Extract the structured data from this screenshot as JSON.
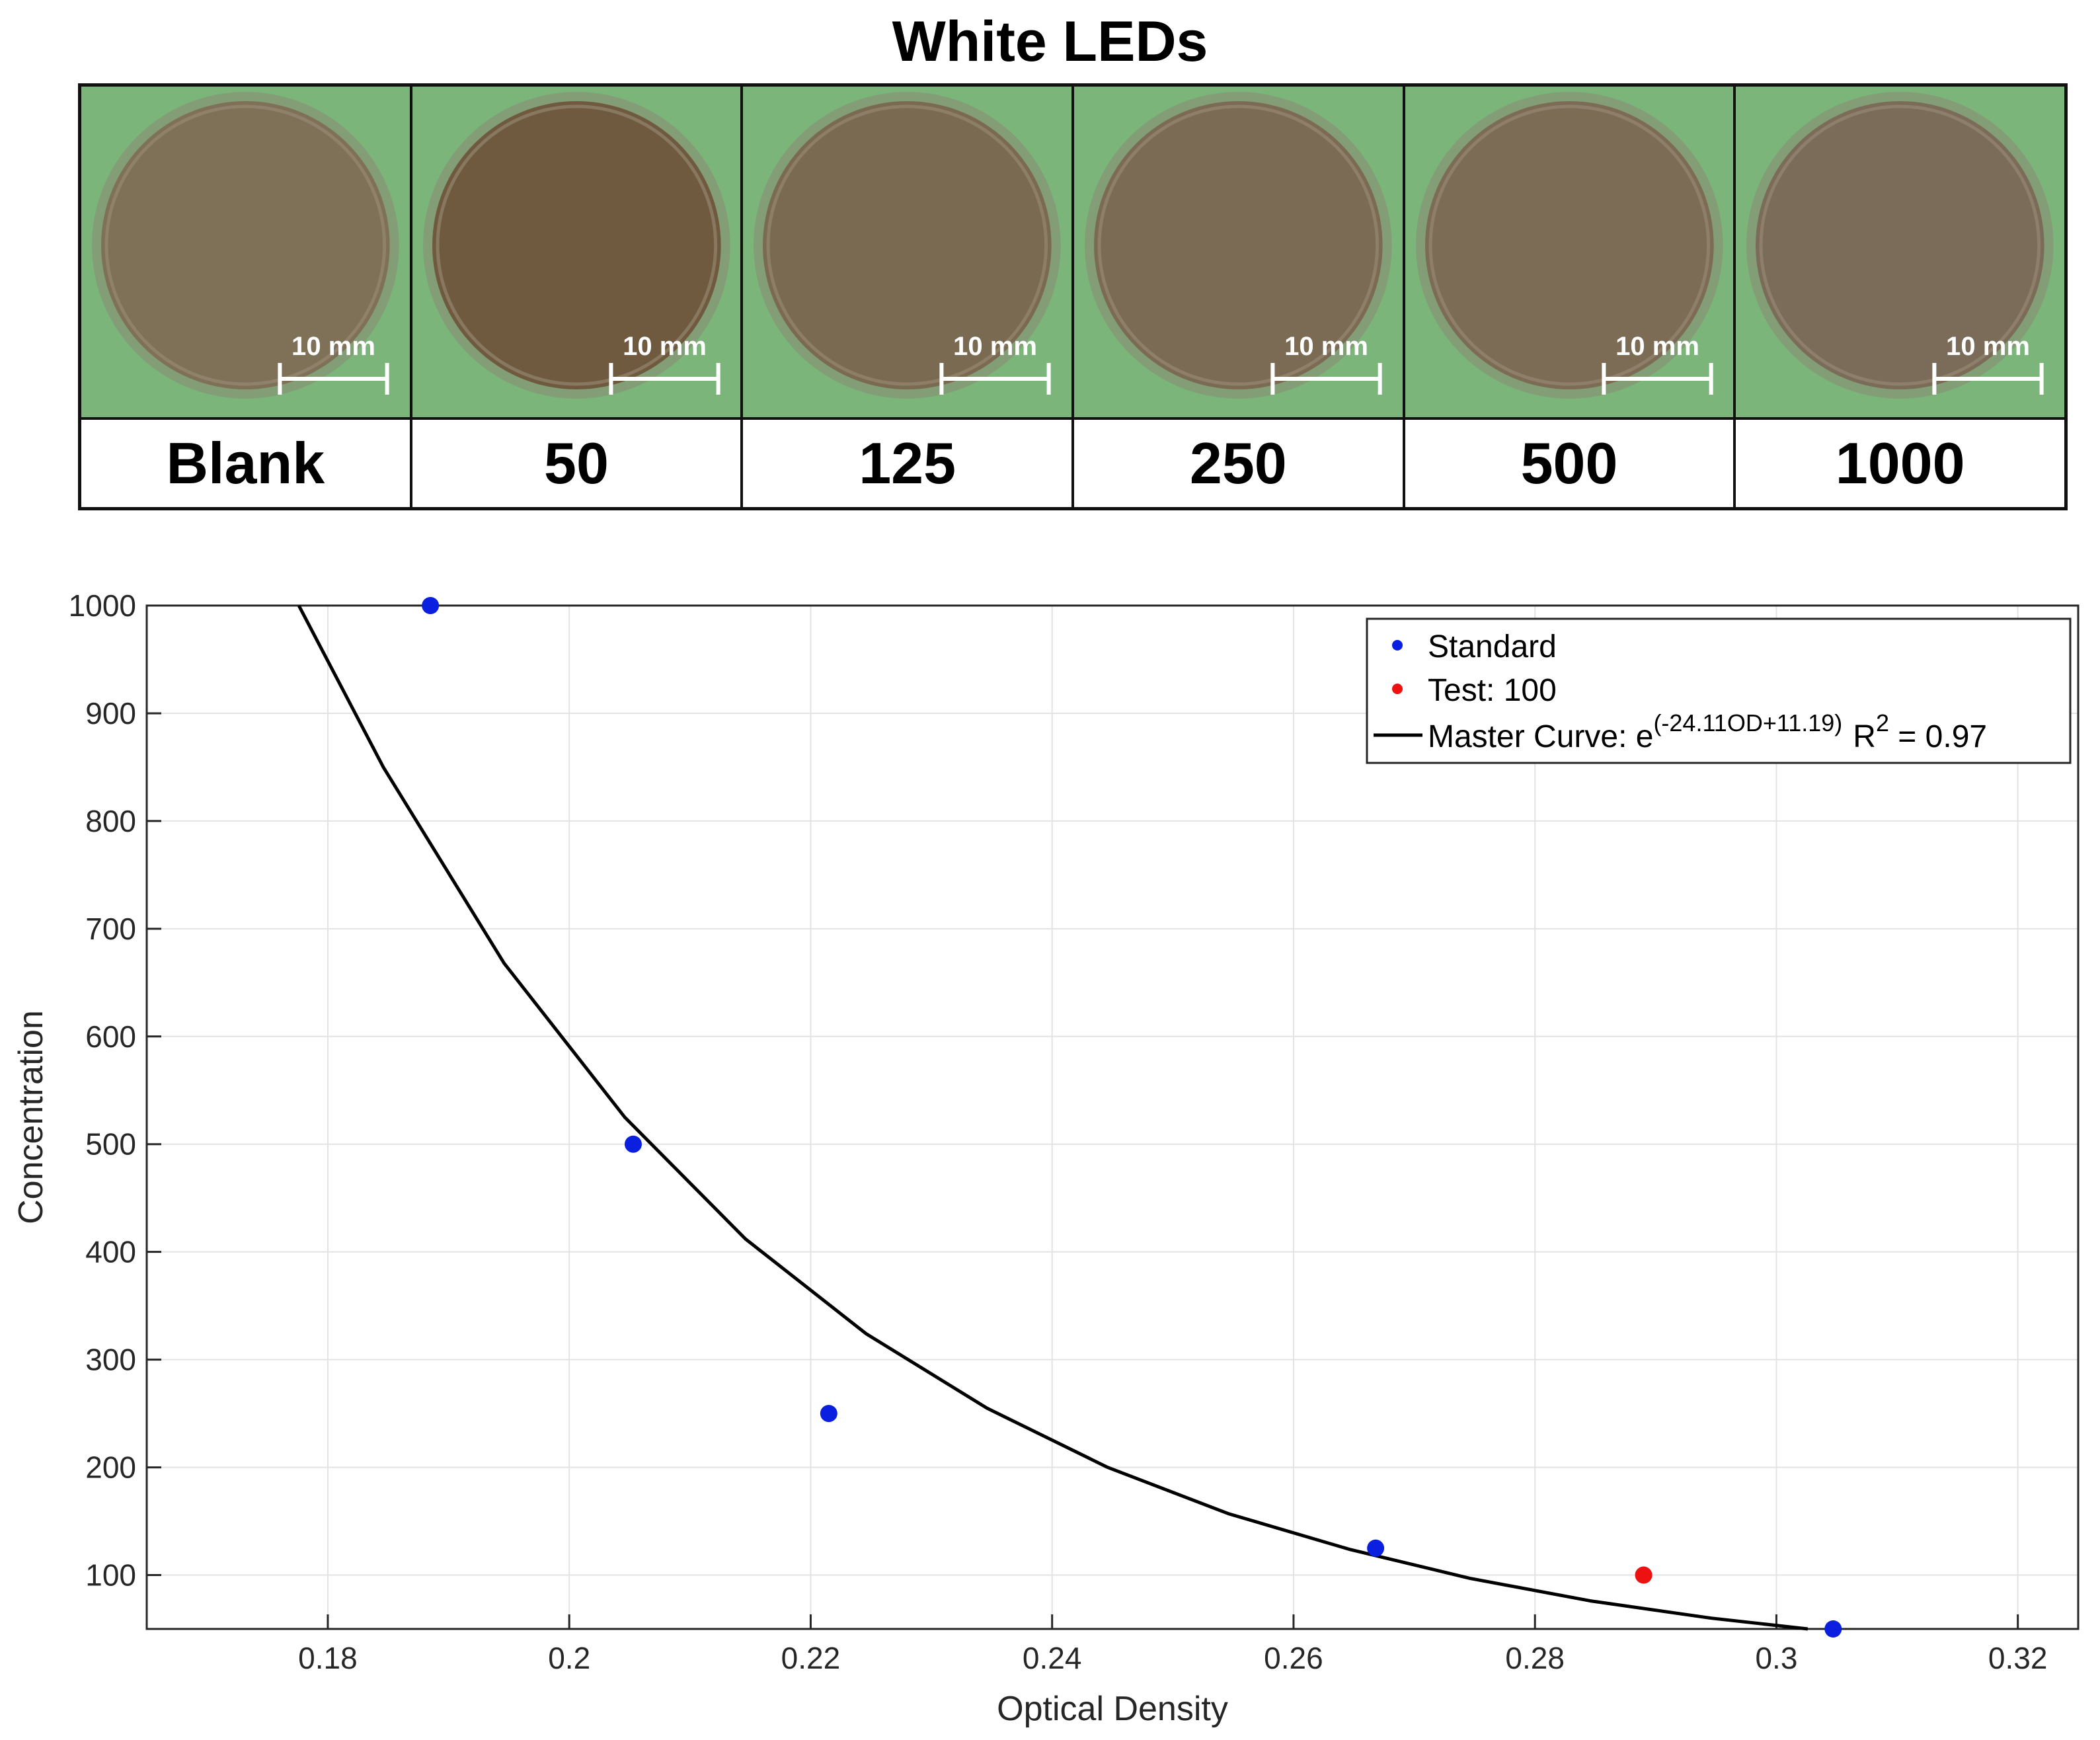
{
  "title": "White LEDs",
  "plates": [
    {
      "label": "Blank",
      "scale": "10 mm"
    },
    {
      "label": "50",
      "scale": "10 mm"
    },
    {
      "label": "125",
      "scale": "10 mm"
    },
    {
      "label": "250",
      "scale": "10 mm"
    },
    {
      "label": "500",
      "scale": "10 mm"
    },
    {
      "label": "1000",
      "scale": "10 mm"
    }
  ],
  "colors": {
    "plate_bg": "#7bb57a",
    "standard": "#0a1fe0",
    "test": "#ee1111",
    "curve": "#000000"
  },
  "chart_data": {
    "type": "scatter",
    "xlabel": "Optical Density",
    "ylabel": "Concentration",
    "xlim": [
      0.165,
      0.325
    ],
    "ylim": [
      50,
      1000
    ],
    "xticks": [
      0.18,
      0.2,
      0.22,
      0.24,
      0.26,
      0.28,
      0.3,
      0.32
    ],
    "xtick_labels": [
      "0.18",
      "0.2",
      "0.22",
      "0.24",
      "0.26",
      "0.28",
      "0.3",
      "0.32"
    ],
    "yticks": [
      100,
      200,
      300,
      400,
      500,
      600,
      700,
      800,
      900,
      1000
    ],
    "ytick_labels": [
      "100",
      "200",
      "300",
      "400",
      "500",
      "600",
      "700",
      "800",
      "900",
      "1000"
    ],
    "grid": true,
    "legend_position": "top-right",
    "series": [
      {
        "name": "Standard",
        "kind": "points",
        "color": "#0a1fe0",
        "x": [
          0.1885,
          0.2053,
          0.2215,
          0.2668,
          0.3047
        ],
        "y": [
          1000,
          500,
          250,
          125,
          50
        ]
      },
      {
        "name": "Test: 100",
        "kind": "points",
        "color": "#ee1111",
        "x": [
          0.289
        ],
        "y": [
          100
        ]
      },
      {
        "name": "Master Curve",
        "kind": "line",
        "color": "#000000",
        "x": [
          0.1776,
          0.1846,
          0.1946,
          0.2046,
          0.2146,
          0.2246,
          0.2346,
          0.2446,
          0.2546,
          0.2646,
          0.2746,
          0.2846,
          0.2946,
          0.3026
        ],
        "y": [
          1000,
          850,
          668,
          525,
          412,
          324,
          255,
          200,
          157,
          124,
          97,
          76,
          60,
          50
        ]
      }
    ],
    "legend": {
      "standard": "Standard",
      "test": "Test: 100",
      "curve_prefix": "Master Curve: e",
      "curve_exponent": "(-24.11OD+11.19)",
      "r_label": "R",
      "r_power": "2",
      "r_value": " = 0.97"
    }
  }
}
